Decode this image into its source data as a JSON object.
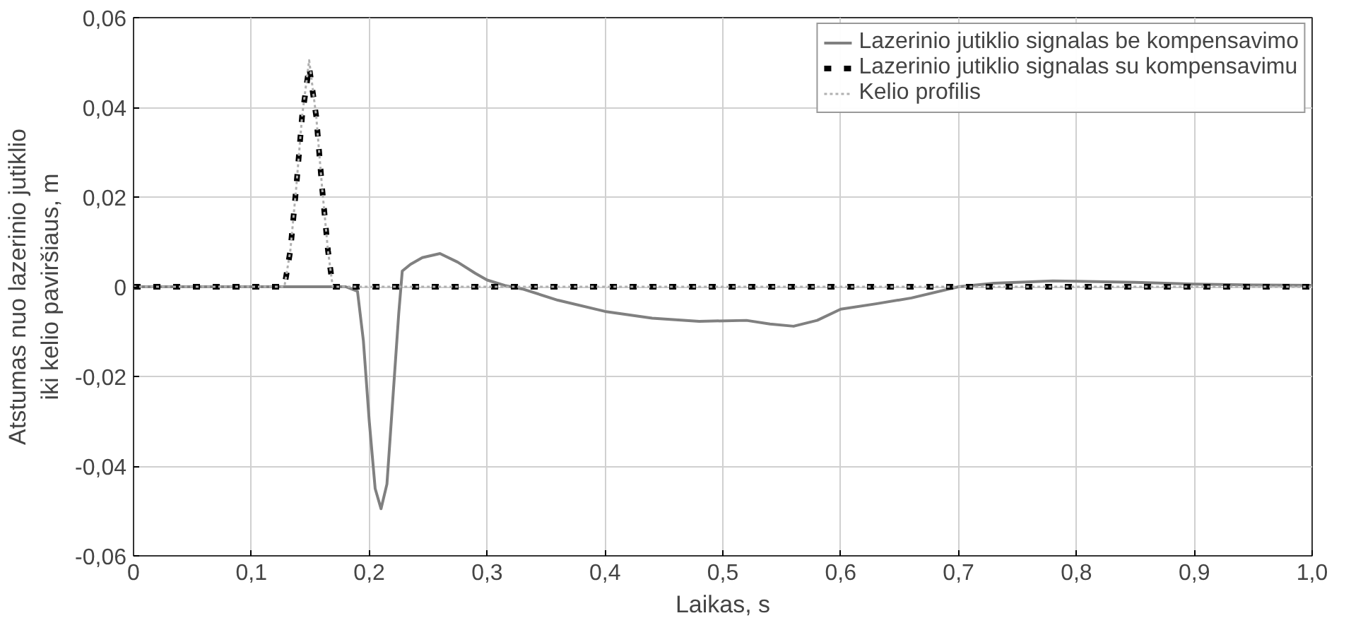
{
  "chart_data": {
    "type": "line",
    "xlabel": "Laikas, s",
    "ylabel": "Atstumas nuo lazerinio jutiklio\niki kelio paviršiaus, m",
    "xlim": [
      0,
      1.0
    ],
    "ylim": [
      -0.06,
      0.06
    ],
    "xticks": [
      0,
      {
        "value": 0.1,
        "label": "0,1"
      },
      {
        "value": 0.2,
        "label": "0,2"
      },
      {
        "value": 0.3,
        "label": "0,3"
      },
      {
        "value": 0.4,
        "label": "0,4"
      },
      {
        "value": 0.5,
        "label": "0,5"
      },
      {
        "value": 0.6,
        "label": "0,6"
      },
      {
        "value": 0.7,
        "label": "0,7"
      },
      {
        "value": 0.8,
        "label": "0,8"
      },
      {
        "value": 0.9,
        "label": "0,9"
      },
      {
        "value": 1.0,
        "label": "1,0"
      }
    ],
    "yticks": [
      {
        "value": -0.06,
        "label": "-0,06"
      },
      {
        "value": -0.04,
        "label": "-0,04"
      },
      {
        "value": -0.02,
        "label": "-0,02"
      },
      0,
      {
        "value": 0.02,
        "label": "0,02"
      },
      {
        "value": 0.04,
        "label": "0,04"
      },
      {
        "value": 0.06,
        "label": "0,06"
      }
    ],
    "grid": true,
    "legend": "top right",
    "marker": "none",
    "series": [
      {
        "name": "Lazerinio jutiklio signalas be kompensavimo",
        "color": "#808080",
        "line_style": "solid",
        "x": [
          0,
          0.18,
          0.19,
          0.195,
          0.2,
          0.205,
          0.21,
          0.215,
          0.22,
          0.225,
          0.228,
          0.235,
          0.245,
          0.26,
          0.275,
          0.29,
          0.3,
          0.315,
          0.33,
          0.36,
          0.4,
          0.44,
          0.48,
          0.52,
          0.54,
          0.56,
          0.58,
          0.6,
          0.63,
          0.66,
          0.7,
          0.73,
          0.78,
          0.85,
          0.9,
          0.95,
          1.0
        ],
        "values": [
          0,
          0,
          -0.001,
          -0.012,
          -0.03,
          -0.045,
          -0.0495,
          -0.044,
          -0.025,
          -0.006,
          0.0035,
          0.005,
          0.0065,
          0.0074,
          0.0055,
          0.003,
          0.0015,
          0.0003,
          -0.0005,
          -0.003,
          -0.0055,
          -0.007,
          -0.0077,
          -0.0075,
          -0.0083,
          -0.0088,
          -0.0075,
          -0.005,
          -0.0038,
          -0.0025,
          0,
          0.0008,
          0.0013,
          0.001,
          0.0006,
          0.0004,
          0.0003
        ]
      },
      {
        "name": "Lazerinio jutiklio signalas su kompensavimu",
        "color": "#000000",
        "line_style": "dashed",
        "x": [
          0,
          0.128,
          0.133,
          0.138,
          0.143,
          0.149,
          0.155,
          0.16,
          0.165,
          0.169,
          1.0
        ],
        "values": [
          0,
          0,
          0.008,
          0.022,
          0.038,
          0.049,
          0.038,
          0.022,
          0.008,
          0,
          0
        ]
      },
      {
        "name": "Kelio profilis",
        "color": "#b0b0b0",
        "line_style": "dotted",
        "x": [
          0,
          0.128,
          0.133,
          0.138,
          0.143,
          0.149,
          0.155,
          0.16,
          0.165,
          0.169,
          1.0
        ],
        "values": [
          0,
          0,
          0.008,
          0.022,
          0.038,
          0.0505,
          0.038,
          0.022,
          0.008,
          0,
          0
        ]
      }
    ]
  }
}
